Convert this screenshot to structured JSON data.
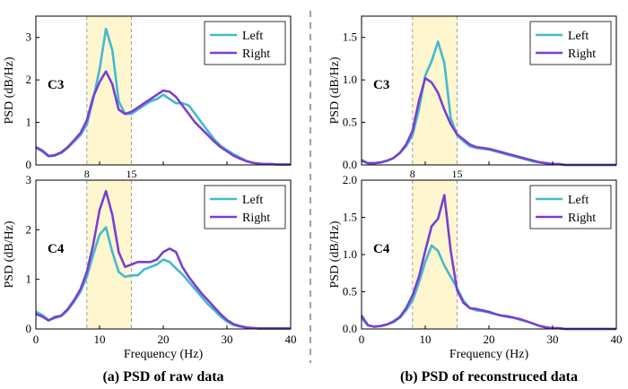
{
  "colors": {
    "left": "#45b8d0",
    "right": "#7a3fd0",
    "band": "#fdf6cf",
    "band_edge": "#a0a0a0",
    "divider": "#606060"
  },
  "legend": {
    "left": "Left",
    "right": "Right"
  },
  "captions": {
    "a": "(a) PSD of raw data",
    "b": "(b) PSD of reconstruced data"
  },
  "band_labels": [
    "8",
    "15"
  ],
  "chart_data": [
    {
      "type": "line",
      "channel": "C3",
      "xlabel": "",
      "ylabel": "PSD (dB/Hz)",
      "xlim": [
        0,
        40
      ],
      "ylim": [
        0,
        3.5
      ],
      "yticks": [
        0,
        1,
        2,
        3
      ],
      "highlight_band": [
        8,
        15
      ],
      "series": [
        {
          "name": "Left",
          "x": [
            0,
            1,
            2,
            3,
            4,
            5,
            6,
            7,
            8,
            9,
            10,
            11,
            12,
            13,
            14,
            15,
            16,
            17,
            18,
            19,
            20,
            21,
            22,
            23,
            24,
            25,
            26,
            27,
            28,
            29,
            30,
            31,
            32,
            33,
            34,
            35,
            36,
            37,
            38,
            39,
            40
          ],
          "values": [
            0.4,
            0.32,
            0.2,
            0.22,
            0.28,
            0.4,
            0.55,
            0.7,
            0.95,
            1.55,
            2.25,
            3.2,
            2.7,
            1.5,
            1.2,
            1.2,
            1.3,
            1.4,
            1.5,
            1.55,
            1.65,
            1.55,
            1.45,
            1.45,
            1.4,
            1.2,
            1.0,
            0.8,
            0.6,
            0.45,
            0.35,
            0.25,
            0.18,
            0.1,
            0.05,
            0.03,
            0.02,
            0.02,
            0.01,
            0.01,
            0.01
          ]
        },
        {
          "name": "Right",
          "x": [
            0,
            1,
            2,
            3,
            4,
            5,
            6,
            7,
            8,
            9,
            10,
            11,
            12,
            13,
            14,
            15,
            16,
            17,
            18,
            19,
            20,
            21,
            22,
            23,
            24,
            25,
            26,
            27,
            28,
            29,
            30,
            31,
            32,
            33,
            34,
            35,
            36,
            37,
            38,
            39,
            40
          ],
          "values": [
            0.42,
            0.34,
            0.21,
            0.23,
            0.3,
            0.42,
            0.58,
            0.75,
            1.05,
            1.6,
            1.95,
            2.2,
            1.9,
            1.3,
            1.2,
            1.25,
            1.35,
            1.45,
            1.55,
            1.65,
            1.75,
            1.72,
            1.6,
            1.4,
            1.2,
            1.0,
            0.85,
            0.7,
            0.55,
            0.42,
            0.32,
            0.22,
            0.15,
            0.09,
            0.05,
            0.03,
            0.02,
            0.02,
            0.01,
            0.01,
            0.01
          ]
        }
      ]
    },
    {
      "type": "line",
      "channel": "C3",
      "xlabel": "",
      "ylabel": "PSD (dB/Hz)",
      "xlim": [
        0,
        40
      ],
      "ylim": [
        0,
        1.75
      ],
      "yticks": [
        0,
        0.5,
        1.0,
        1.5
      ],
      "highlight_band": [
        8,
        15
      ],
      "series": [
        {
          "name": "Left",
          "x": [
            0,
            1,
            2,
            3,
            4,
            5,
            6,
            7,
            8,
            9,
            10,
            11,
            12,
            13,
            14,
            15,
            16,
            17,
            18,
            19,
            20,
            21,
            22,
            23,
            24,
            25,
            26,
            27,
            28,
            29,
            30,
            31,
            32,
            33,
            34,
            35,
            36,
            37,
            38,
            39,
            40
          ],
          "values": [
            0.06,
            0.02,
            0.02,
            0.03,
            0.05,
            0.08,
            0.14,
            0.22,
            0.35,
            0.65,
            1.05,
            1.22,
            1.45,
            1.2,
            0.55,
            0.35,
            0.28,
            0.22,
            0.2,
            0.19,
            0.18,
            0.16,
            0.14,
            0.12,
            0.1,
            0.08,
            0.06,
            0.04,
            0.03,
            0.02,
            0.01,
            0.01,
            0.0,
            0.0,
            0.0,
            0.0,
            0.0,
            0.0,
            0.0,
            0.0,
            0.0
          ]
        },
        {
          "name": "Right",
          "x": [
            0,
            1,
            2,
            3,
            4,
            5,
            6,
            7,
            8,
            9,
            10,
            11,
            12,
            13,
            14,
            15,
            16,
            17,
            18,
            19,
            20,
            21,
            22,
            23,
            24,
            25,
            26,
            27,
            28,
            29,
            30,
            31,
            32,
            33,
            34,
            35,
            36,
            37,
            38,
            39,
            40
          ],
          "values": [
            0.05,
            0.02,
            0.02,
            0.03,
            0.05,
            0.08,
            0.14,
            0.24,
            0.4,
            0.75,
            1.02,
            0.97,
            0.85,
            0.65,
            0.48,
            0.36,
            0.3,
            0.24,
            0.21,
            0.2,
            0.19,
            0.17,
            0.15,
            0.13,
            0.11,
            0.09,
            0.07,
            0.05,
            0.03,
            0.02,
            0.01,
            0.01,
            0.0,
            0.0,
            0.0,
            0.0,
            0.0,
            0.0,
            0.0,
            0.0,
            0.0
          ]
        }
      ]
    },
    {
      "type": "line",
      "channel": "C4",
      "xlabel": "Frequency (Hz)",
      "ylabel": "PSD (dB/Hz)",
      "xlim": [
        0,
        40
      ],
      "ylim": [
        0,
        3
      ],
      "yticks": [
        0,
        1,
        2,
        3
      ],
      "xticks": [
        0,
        10,
        20,
        30,
        40
      ],
      "highlight_band": [
        8,
        15
      ],
      "series": [
        {
          "name": "Left",
          "x": [
            0,
            1,
            2,
            3,
            4,
            5,
            6,
            7,
            8,
            9,
            10,
            11,
            12,
            13,
            14,
            15,
            16,
            17,
            18,
            19,
            20,
            21,
            22,
            23,
            24,
            25,
            26,
            27,
            28,
            29,
            30,
            31,
            32,
            33,
            34,
            35,
            36,
            37,
            38,
            39,
            40
          ],
          "values": [
            0.35,
            0.28,
            0.18,
            0.22,
            0.26,
            0.38,
            0.55,
            0.75,
            1.05,
            1.5,
            1.9,
            2.05,
            1.55,
            1.15,
            1.05,
            1.08,
            1.08,
            1.2,
            1.25,
            1.3,
            1.4,
            1.35,
            1.22,
            1.1,
            0.95,
            0.8,
            0.65,
            0.5,
            0.38,
            0.25,
            0.15,
            0.08,
            0.05,
            0.03,
            0.02,
            0.01,
            0.01,
            0.01,
            0.01,
            0.01,
            0.01
          ]
        },
        {
          "name": "Right",
          "x": [
            0,
            1,
            2,
            3,
            4,
            5,
            6,
            7,
            8,
            9,
            10,
            11,
            12,
            13,
            14,
            15,
            16,
            17,
            18,
            19,
            20,
            21,
            22,
            23,
            24,
            25,
            26,
            27,
            28,
            29,
            30,
            31,
            32,
            33,
            34,
            35,
            36,
            37,
            38,
            39,
            40
          ],
          "values": [
            0.3,
            0.25,
            0.17,
            0.24,
            0.27,
            0.4,
            0.58,
            0.8,
            1.15,
            1.7,
            2.4,
            2.78,
            2.3,
            1.55,
            1.25,
            1.3,
            1.35,
            1.35,
            1.35,
            1.4,
            1.55,
            1.62,
            1.55,
            1.25,
            1.05,
            0.88,
            0.72,
            0.58,
            0.44,
            0.3,
            0.18,
            0.1,
            0.06,
            0.03,
            0.02,
            0.01,
            0.01,
            0.01,
            0.01,
            0.01,
            0.01
          ]
        }
      ]
    },
    {
      "type": "line",
      "channel": "C4",
      "xlabel": "Frequency (Hz)",
      "ylabel": "PSD (dB/Hz)",
      "xlim": [
        0,
        40
      ],
      "ylim": [
        0,
        2.0
      ],
      "yticks": [
        0,
        0.5,
        1.0,
        1.5,
        2.0
      ],
      "xticks": [
        0,
        10,
        20,
        30,
        40
      ],
      "highlight_band": [
        8,
        15
      ],
      "series": [
        {
          "name": "Left",
          "x": [
            0,
            1,
            2,
            3,
            4,
            5,
            6,
            7,
            8,
            9,
            10,
            11,
            12,
            13,
            14,
            15,
            16,
            17,
            18,
            19,
            20,
            21,
            22,
            23,
            24,
            25,
            26,
            27,
            28,
            29,
            30,
            31,
            32,
            33,
            34,
            35,
            36,
            37,
            38,
            39,
            40
          ],
          "values": [
            0.15,
            0.05,
            0.03,
            0.04,
            0.06,
            0.09,
            0.15,
            0.25,
            0.38,
            0.62,
            0.9,
            1.12,
            1.05,
            0.85,
            0.7,
            0.55,
            0.38,
            0.28,
            0.25,
            0.24,
            0.22,
            0.2,
            0.18,
            0.16,
            0.15,
            0.12,
            0.1,
            0.07,
            0.04,
            0.02,
            0.01,
            0.01,
            0.0,
            0.0,
            0.0,
            0.0,
            0.0,
            0.0,
            0.0,
            0.0,
            0.0
          ]
        },
        {
          "name": "Right",
          "x": [
            0,
            1,
            2,
            3,
            4,
            5,
            6,
            7,
            8,
            9,
            10,
            11,
            12,
            13,
            14,
            15,
            16,
            17,
            18,
            19,
            20,
            21,
            22,
            23,
            24,
            25,
            26,
            27,
            28,
            29,
            30,
            31,
            32,
            33,
            34,
            35,
            36,
            37,
            38,
            39,
            40
          ],
          "values": [
            0.18,
            0.05,
            0.03,
            0.04,
            0.06,
            0.1,
            0.16,
            0.28,
            0.45,
            0.7,
            1.05,
            1.38,
            1.48,
            1.8,
            1.05,
            0.52,
            0.35,
            0.28,
            0.27,
            0.25,
            0.23,
            0.2,
            0.18,
            0.17,
            0.15,
            0.13,
            0.1,
            0.07,
            0.04,
            0.02,
            0.01,
            0.01,
            0.0,
            0.0,
            0.0,
            0.0,
            0.0,
            0.0,
            0.0,
            0.0,
            0.0
          ]
        }
      ]
    }
  ]
}
